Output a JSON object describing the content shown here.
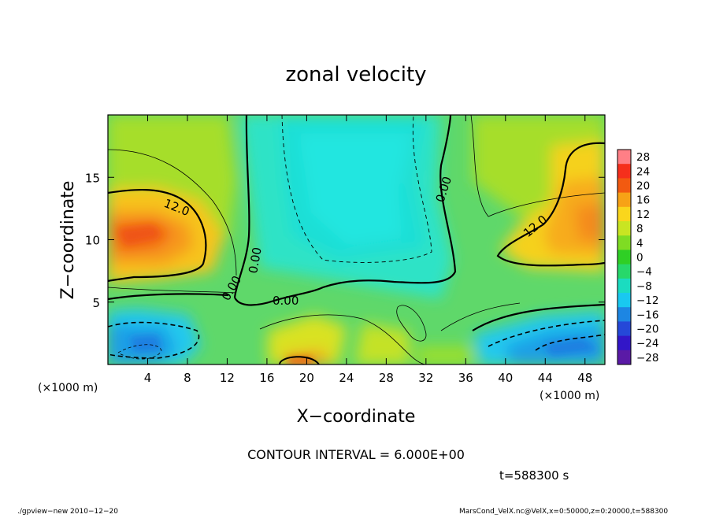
{
  "chart_data": {
    "type": "heatmap",
    "title": "zonal velocity",
    "xlabel": "X−coordinate",
    "ylabel": "Z−coordinate",
    "x_unit_left": "(×1000 m)",
    "x_unit_right": "(×1000 m)",
    "xlim": [
      0,
      50
    ],
    "ylim": [
      0,
      20
    ],
    "xticks": [
      4,
      8,
      12,
      16,
      20,
      24,
      28,
      32,
      36,
      40,
      44,
      48
    ],
    "yticks": [
      5,
      10,
      15
    ],
    "colorbar": {
      "levels": [
        28,
        24,
        20,
        16,
        12,
        8,
        4,
        0,
        -4,
        -8,
        -12,
        -16,
        -20,
        -24,
        -28
      ],
      "labels": [
        "28",
        "24",
        "20",
        "16",
        "12",
        "8",
        "4",
        "0",
        "−4",
        "−8",
        "−12",
        "−16",
        "−20",
        "−24",
        "−28"
      ],
      "colors": [
        "#ff7f86",
        "#f52f1c",
        "#f25a10",
        "#f7a216",
        "#fad61c",
        "#c9e522",
        "#7fdc23",
        "#2fcf25",
        "#27d86a",
        "#1bdcc0",
        "#19c8f0",
        "#1d86e3",
        "#2548d8",
        "#3216c8",
        "#5a1aa6"
      ]
    },
    "contour_labels": [
      "12.0",
      "12.0",
      "0.00",
      "0.00",
      "0.00",
      "0.00"
    ],
    "contour_interval_text": "CONTOUR INTERVAL = 6.000E+00",
    "time_text": "t=588300 s"
  },
  "footer": {
    "left": "./gpview−new   2010−12−20",
    "right": "MarsCond_VelX.nc@VelX,x=0:50000,z=0:20000,t=588300"
  }
}
